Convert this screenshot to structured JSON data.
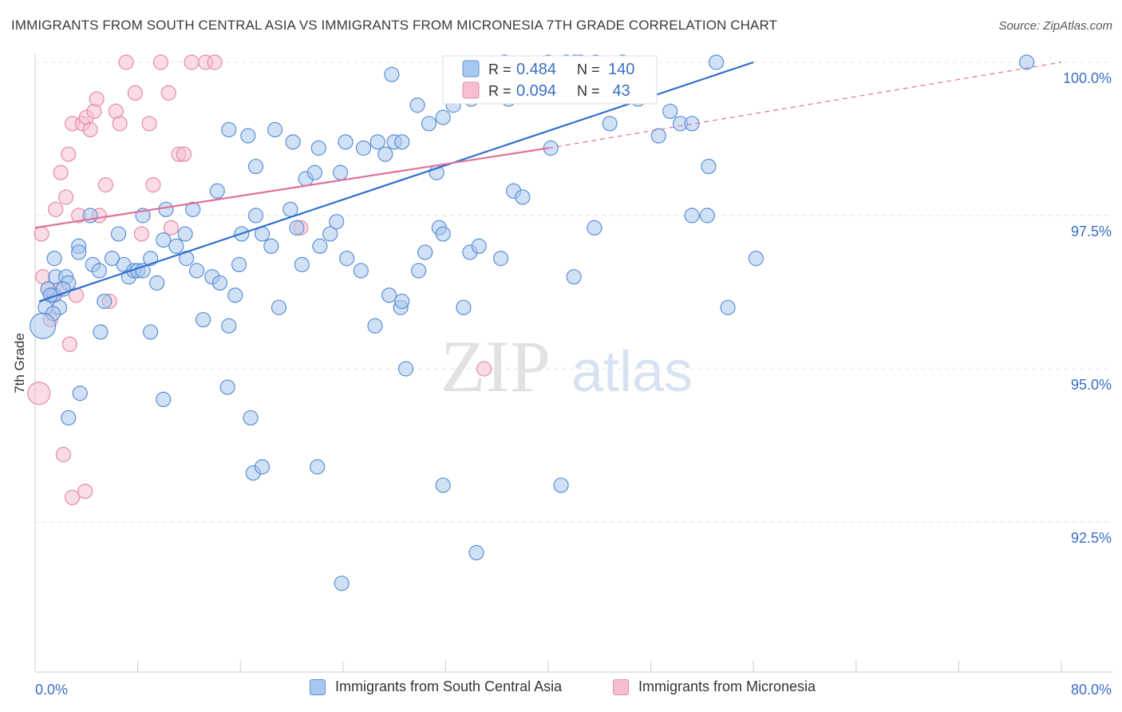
{
  "title": "IMMIGRANTS FROM SOUTH CENTRAL ASIA VS IMMIGRANTS FROM MICRONESIA 7TH GRADE CORRELATION CHART",
  "source": "Source: ZipAtlas.com",
  "watermark": {
    "zip": "ZIP",
    "atlas": "atlas"
  },
  "colors": {
    "blue_fill": "#a9c8ef",
    "blue_stroke": "#5b8fd6",
    "blue_line": "#2f6fce",
    "blue_text": "#3a6fc4",
    "pink_fill": "#f6bfd0",
    "pink_stroke": "#e58aa8",
    "pink_line": "#e0709a",
    "grid": "#e6e6e6",
    "axis_text": "#3a6fc4"
  },
  "legend_box": {
    "rows": [
      {
        "r_label": "R = ",
        "r_value": "0.484",
        "n_label": "N = ",
        "n_value": "140",
        "series": "blue"
      },
      {
        "r_label": "R = ",
        "r_value": "0.094",
        "n_label": "N = ",
        "n_value": " 43",
        "series": "pink"
      }
    ]
  },
  "legend_bottom": {
    "blue_label": "Immigrants from South Central Asia",
    "pink_label": "Immigrants from Micronesia"
  },
  "chart_data": {
    "type": "scatter",
    "title": "IMMIGRANTS FROM SOUTH CENTRAL ASIA VS IMMIGRANTS FROM MICRONESIA 7TH GRADE CORRELATION CHART",
    "ylabel": "7th Grade",
    "xlabel": "",
    "x_tick_labels": [
      "0.0%",
      "80.0%"
    ],
    "y_tick_labels": [
      "100.0%",
      "97.5%",
      "95.0%",
      "92.5%"
    ],
    "y_ticks": [
      100.0,
      97.5,
      95.0,
      92.5
    ],
    "xlim": [
      0,
      80
    ],
    "ylim": [
      90.3,
      100.2
    ],
    "grid": true,
    "legend_placement": "top-center",
    "series": [
      {
        "name": "Immigrants from South Central Asia",
        "color": "blue",
        "trend": {
          "x0": 0.3,
          "y0": 96.1,
          "x1": 56,
          "y1": 100.0,
          "extend_x1": 56
        },
        "points": [
          [
            1.5,
            96.2
          ],
          [
            1.5,
            96.8
          ],
          [
            1.9,
            96.0
          ],
          [
            1.6,
            96.5
          ],
          [
            1.0,
            96.3
          ],
          [
            1.2,
            96.2
          ],
          [
            0.8,
            96.0
          ],
          [
            1.4,
            95.9
          ],
          [
            2.4,
            96.5
          ],
          [
            2.6,
            96.4
          ],
          [
            0.6,
            95.7
          ],
          [
            2.2,
            96.3
          ],
          [
            3.4,
            97.0
          ],
          [
            4.3,
            97.5
          ],
          [
            4.5,
            96.7
          ],
          [
            5.0,
            96.6
          ],
          [
            3.4,
            96.9
          ],
          [
            5.4,
            96.1
          ],
          [
            6.5,
            97.2
          ],
          [
            6.9,
            96.7
          ],
          [
            6.0,
            96.8
          ],
          [
            7.3,
            96.5
          ],
          [
            7.7,
            96.6
          ],
          [
            8.0,
            96.6
          ],
          [
            8.4,
            96.6
          ],
          [
            8.4,
            97.5
          ],
          [
            9.0,
            96.8
          ],
          [
            9.5,
            96.4
          ],
          [
            10.0,
            97.1
          ],
          [
            10.2,
            97.6
          ],
          [
            11.0,
            97.0
          ],
          [
            11.7,
            97.2
          ],
          [
            12.3,
            97.6
          ],
          [
            11.8,
            96.8
          ],
          [
            12.6,
            96.6
          ],
          [
            13.1,
            95.8
          ],
          [
            13.8,
            96.5
          ],
          [
            14.4,
            96.4
          ],
          [
            15.1,
            95.7
          ],
          [
            15.6,
            96.2
          ],
          [
            15.9,
            96.7
          ],
          [
            16.1,
            97.2
          ],
          [
            17.2,
            97.5
          ],
          [
            17.7,
            97.2
          ],
          [
            18.4,
            97.0
          ],
          [
            19.9,
            97.6
          ],
          [
            20.4,
            97.3
          ],
          [
            20.8,
            96.7
          ],
          [
            22.2,
            97.0
          ],
          [
            23.0,
            97.2
          ],
          [
            23.5,
            97.4
          ],
          [
            24.3,
            96.8
          ],
          [
            25.4,
            96.6
          ],
          [
            26.5,
            95.7
          ],
          [
            27.6,
            96.2
          ],
          [
            28.5,
            96.0
          ],
          [
            29.9,
            96.6
          ],
          [
            30.4,
            96.9
          ],
          [
            31.5,
            97.3
          ],
          [
            31.8,
            97.2
          ],
          [
            33.9,
            96.9
          ],
          [
            34.6,
            97.0
          ],
          [
            36.3,
            96.8
          ],
          [
            37.3,
            97.9
          ],
          [
            38.0,
            97.8
          ],
          [
            42.0,
            96.5
          ],
          [
            43.6,
            97.3
          ],
          [
            17.2,
            98.3
          ],
          [
            16.6,
            98.8
          ],
          [
            15.1,
            98.9
          ],
          [
            14.2,
            97.9
          ],
          [
            18.7,
            98.9
          ],
          [
            20.1,
            98.7
          ],
          [
            21.1,
            98.1
          ],
          [
            21.8,
            98.2
          ],
          [
            22.1,
            98.6
          ],
          [
            23.8,
            98.2
          ],
          [
            24.2,
            98.7
          ],
          [
            25.6,
            98.6
          ],
          [
            26.7,
            98.7
          ],
          [
            27.3,
            98.5
          ],
          [
            28.0,
            98.7
          ],
          [
            28.6,
            98.7
          ],
          [
            29.8,
            99.3
          ],
          [
            30.7,
            99.0
          ],
          [
            31.3,
            98.2
          ],
          [
            31.8,
            99.1
          ],
          [
            32.6,
            99.3
          ],
          [
            34.0,
            99.4
          ],
          [
            36.9,
            99.4
          ],
          [
            36.6,
            100.0
          ],
          [
            39.3,
            99.5
          ],
          [
            40.2,
            98.6
          ],
          [
            40.6,
            99.8
          ],
          [
            41.4,
            100.0
          ],
          [
            42.1,
            100.0
          ],
          [
            43.7,
            100.0
          ],
          [
            44.8,
            99.0
          ],
          [
            46.2,
            99.8
          ],
          [
            47.0,
            99.4
          ],
          [
            48.6,
            98.8
          ],
          [
            49.5,
            99.2
          ],
          [
            50.3,
            99.0
          ],
          [
            51.2,
            99.0
          ],
          [
            52.5,
            98.3
          ],
          [
            51.2,
            97.5
          ],
          [
            52.4,
            97.5
          ],
          [
            56.2,
            96.8
          ],
          [
            54.0,
            96.0
          ],
          [
            53.1,
            100.0
          ],
          [
            45.8,
            100.0
          ],
          [
            42.5,
            100.0
          ],
          [
            27.8,
            99.8
          ],
          [
            77.3,
            100.0
          ],
          [
            5.1,
            95.6
          ],
          [
            9.0,
            95.6
          ],
          [
            3.5,
            94.6
          ],
          [
            2.6,
            94.2
          ],
          [
            10.0,
            94.5
          ],
          [
            15.0,
            94.7
          ],
          [
            16.8,
            94.2
          ],
          [
            17.0,
            93.3
          ],
          [
            17.7,
            93.4
          ],
          [
            22.0,
            93.4
          ],
          [
            28.9,
            95.0
          ],
          [
            31.8,
            93.1
          ],
          [
            34.4,
            92.0
          ],
          [
            41.0,
            93.1
          ],
          [
            23.9,
            91.5
          ],
          [
            28.6,
            96.1
          ],
          [
            33.4,
            96.0
          ],
          [
            19.0,
            96.0
          ],
          [
            40.0,
            100.0
          ]
        ]
      },
      {
        "name": "Immigrants from Micronesia",
        "color": "pink",
        "trend": {
          "x0": 0,
          "y0": 97.3,
          "x1": 40,
          "y1": 98.6,
          "dash_x1": 80,
          "dash_y1": 100.0
        },
        "points": [
          [
            0.3,
            94.6
          ],
          [
            0.5,
            97.2
          ],
          [
            0.6,
            96.5
          ],
          [
            1.0,
            96.3
          ],
          [
            1.2,
            95.8
          ],
          [
            1.4,
            96.2
          ],
          [
            1.6,
            97.6
          ],
          [
            1.9,
            96.3
          ],
          [
            2.0,
            98.2
          ],
          [
            2.4,
            97.8
          ],
          [
            2.6,
            98.5
          ],
          [
            2.7,
            95.4
          ],
          [
            2.9,
            99.0
          ],
          [
            3.2,
            96.2
          ],
          [
            3.4,
            97.5
          ],
          [
            3.7,
            99.0
          ],
          [
            4.0,
            99.1
          ],
          [
            4.3,
            98.9
          ],
          [
            4.6,
            99.2
          ],
          [
            4.8,
            99.4
          ],
          [
            5.0,
            97.5
          ],
          [
            5.5,
            98.0
          ],
          [
            5.8,
            96.1
          ],
          [
            6.3,
            99.2
          ],
          [
            6.6,
            99.0
          ],
          [
            7.1,
            100.0
          ],
          [
            7.8,
            99.5
          ],
          [
            8.3,
            97.2
          ],
          [
            8.9,
            99.0
          ],
          [
            9.2,
            98.0
          ],
          [
            9.8,
            100.0
          ],
          [
            10.4,
            99.5
          ],
          [
            10.6,
            97.3
          ],
          [
            11.2,
            98.5
          ],
          [
            11.6,
            98.5
          ],
          [
            12.2,
            100.0
          ],
          [
            13.3,
            100.0
          ],
          [
            14.0,
            100.0
          ],
          [
            2.2,
            93.6
          ],
          [
            2.9,
            92.9
          ],
          [
            3.9,
            93.0
          ],
          [
            20.7,
            97.3
          ],
          [
            35.0,
            95.0
          ]
        ]
      }
    ]
  }
}
